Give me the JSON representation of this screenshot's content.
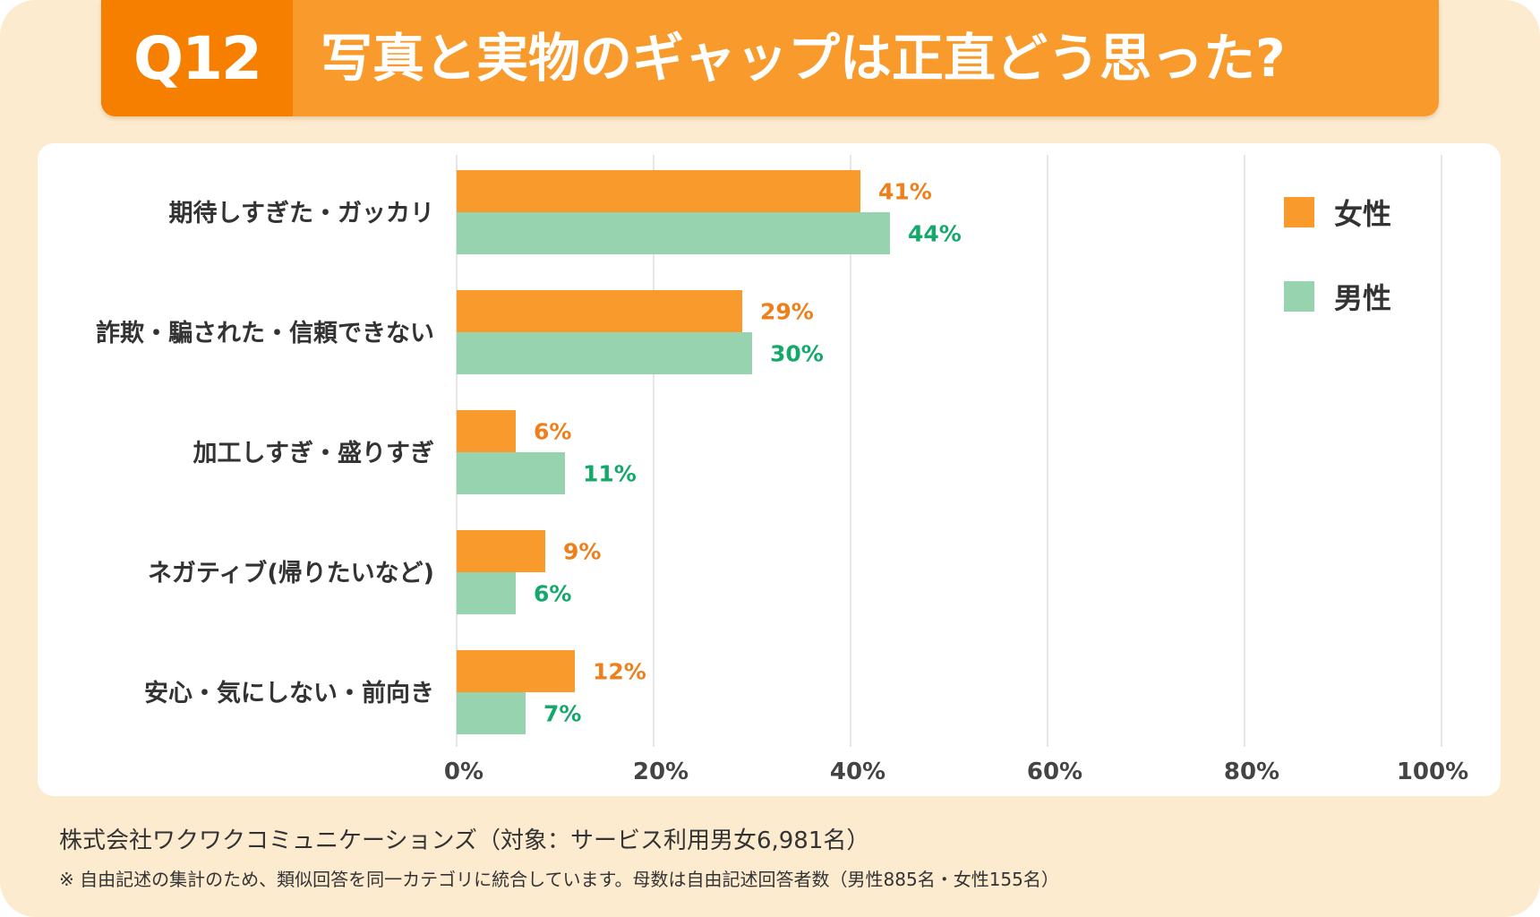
{
  "header": {
    "question_no": "Q12",
    "title": "写真と実物のギャップは正直どう思った?"
  },
  "colors": {
    "female": "#F99B2C",
    "male": "#98D3B0",
    "female_label": "#EE7F1A",
    "male_label": "#14A86A",
    "background": "#FDEBD0"
  },
  "chart_data": {
    "type": "bar",
    "orientation": "horizontal",
    "categories": [
      "期待しすぎた・ガッカリ",
      "詐欺・騙された・信頼できない",
      "加工しすぎ・盛りすぎ",
      "ネガティブ(帰りたいなど)",
      "安心・気にしない・前向き"
    ],
    "series": [
      {
        "name": "女性",
        "values": [
          41,
          29,
          6,
          9,
          12
        ],
        "labels": [
          "41%",
          "29%",
          "6%",
          "9%",
          "12%"
        ]
      },
      {
        "name": "男性",
        "values": [
          44,
          30,
          11,
          6,
          7
        ],
        "labels": [
          "44%",
          "30%",
          "11%",
          "6%",
          "7%"
        ]
      }
    ],
    "xlim": [
      0,
      100
    ],
    "xticks": [
      "0%",
      "20%",
      "40%",
      "60%",
      "80%",
      "100%"
    ],
    "grid": true,
    "legend_position": "top-right"
  },
  "footer": {
    "source": "株式会社ワクワクコミュニケーションズ（対象：サービス利用男女6,981名）",
    "note": "※ 自由記述の集計のため、類似回答を同一カテゴリに統合しています。母数は自由記述回答者数（男性885名・女性155名）"
  }
}
